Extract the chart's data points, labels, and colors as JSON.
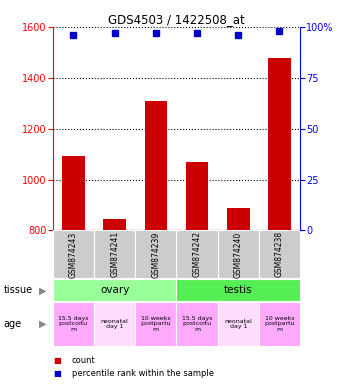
{
  "title": "GDS4503 / 1422508_at",
  "samples": [
    "GSM874243",
    "GSM874241",
    "GSM874239",
    "GSM874242",
    "GSM874240",
    "GSM874238"
  ],
  "counts": [
    1093,
    843,
    1310,
    1068,
    888,
    1477
  ],
  "percentile_ranks": [
    96,
    97,
    97,
    97,
    96,
    98
  ],
  "ylim_left": [
    800,
    1600
  ],
  "ylim_right": [
    0,
    100
  ],
  "yticks_left": [
    800,
    1000,
    1200,
    1400,
    1600
  ],
  "yticks_right": [
    0,
    25,
    50,
    75,
    100
  ],
  "bar_color": "#cc0000",
  "dot_color": "#0000cc",
  "tissue_groups": [
    {
      "label": "ovary",
      "indices": [
        0,
        1,
        2
      ],
      "color": "#99ff99"
    },
    {
      "label": "testis",
      "indices": [
        3,
        4,
        5
      ],
      "color": "#55ee55"
    }
  ],
  "age_labels": [
    "15.5 days\npostcoitu\nm",
    "neonatal\nday 1",
    "10 weeks\npostpartu\nm",
    "15.5 days\npostcoitu\nm",
    "neonatal\nday 1",
    "10 weeks\npostpartu\nm"
  ],
  "age_bg_colors": [
    "#ffaaff",
    "#ffddff",
    "#ffaaff",
    "#ffaaff",
    "#ffddff",
    "#ffaaff"
  ],
  "sample_box_color": "#cccccc",
  "bar_color_legend": "#cc0000",
  "dot_color_legend": "#0000cc"
}
